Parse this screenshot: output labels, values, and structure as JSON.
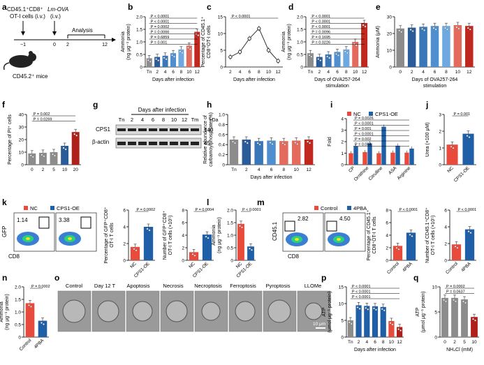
{
  "figure": {
    "panels": {
      "a": {
        "letter": "a",
        "cells_line1": "CD45.1⁺CD8⁺",
        "cells_line2": "OT-I cells (i.v.)",
        "lm": "Lm-OVA",
        "lm_route": "(i.v.)",
        "analysis": "Analysis",
        "mice": "CD45.2⁺ mice",
        "ticks": [
          "−1",
          "0",
          "2",
          "12"
        ]
      },
      "b": {
        "letter": "b"
      },
      "c": {
        "letter": "c"
      },
      "d": {
        "letter": "d"
      },
      "e": {
        "letter": "e"
      },
      "f": {
        "letter": "f"
      },
      "g": {
        "letter": "g",
        "title": "Days after infection",
        "lanes": [
          "Tn",
          "2",
          "4",
          "6",
          "8",
          "10",
          "12",
          "Tm"
        ],
        "kda": "kDa",
        "rows": [
          {
            "label": "CPS1",
            "kda": "140"
          },
          {
            "label": "β-actin",
            "kda": "45"
          }
        ]
      },
      "h": {
        "letter": "h"
      },
      "i": {
        "letter": "i"
      },
      "j": {
        "letter": "j"
      },
      "k": {
        "letter": "k",
        "legend": [
          "NC",
          "CPS1-OE"
        ],
        "gates": [
          "1.14",
          "3.38"
        ],
        "xaxis": "CD8",
        "yaxis": "GFP"
      },
      "l": {
        "letter": "l"
      },
      "m": {
        "letter": "m",
        "legend": [
          "Control",
          "4PBA"
        ],
        "gates": [
          "2.82",
          "4.50"
        ],
        "xaxis": "CD8",
        "yaxis": "CD45.1"
      },
      "n": {
        "letter": "n"
      },
      "o": {
        "letter": "o",
        "labels": [
          "Control",
          "Day 12 T",
          "Apoptosis",
          "Necrosis",
          "Necroptosis",
          "Ferroptosis",
          "Pyroptosis",
          "LLOMe"
        ],
        "sub": "eff",
        "scale": "10 μm"
      },
      "p": {
        "letter": "p"
      },
      "q": {
        "letter": "q"
      }
    }
  },
  "chart_data": [
    {
      "id": "b",
      "type": "bar",
      "categories": [
        "Tn",
        "2",
        "4",
        "6",
        "8",
        "10",
        "12"
      ],
      "values": [
        0.35,
        0.4,
        0.45,
        0.55,
        0.7,
        0.85,
        1.4
      ],
      "colors": [
        "#8c8c8c",
        "#2a5c9a",
        "#3a77b8",
        "#4f8fcf",
        "#6da8e0",
        "#e36a5d",
        "#c0281f"
      ],
      "ylabel": "Ammonia\n(ng μg⁻¹ protein)",
      "xlabel": "Days after infection",
      "ylim": [
        0,
        2
      ],
      "yticks": [
        "0",
        "0.5",
        "1.0",
        "1.5",
        "2.0"
      ],
      "pvalues": [
        "P < 0.0001",
        "P < 0.0001",
        "P = 0.0002",
        "P = 0.0066",
        "P = 0.6859",
        "P = 0.001"
      ]
    },
    {
      "id": "c",
      "type": "line",
      "categories": [
        "2",
        "4",
        "6",
        "8",
        "10",
        "12"
      ],
      "values": [
        3,
        4.5,
        8.5,
        11.5,
        5,
        1.8
      ],
      "ylabel": "Percentage of CD45.1⁺\nCD8⁺OT-I cells",
      "xlabel": "Days after infection",
      "ylim": [
        0,
        15
      ],
      "yticks": [
        "0",
        "5",
        "10",
        "15"
      ],
      "pvalues": [
        "P < 0.0001"
      ]
    },
    {
      "id": "d",
      "type": "bar",
      "categories": [
        "Tn",
        "2",
        "4",
        "6",
        "8",
        "10",
        "12"
      ],
      "values": [
        0.55,
        0.4,
        0.5,
        0.6,
        0.7,
        1.0,
        1.75
      ],
      "colors": [
        "#8c8c8c",
        "#2a5c9a",
        "#3a77b8",
        "#4f8fcf",
        "#6da8e0",
        "#e36a5d",
        "#c0281f"
      ],
      "ylabel": "Ammonia\n(ng μg⁻¹ protein)",
      "xlabel": "Days of OVA257-264\nstimulation",
      "ylim": [
        0,
        2
      ],
      "yticks": [
        "0",
        "0.5",
        "1.0",
        "1.5",
        "2.0"
      ],
      "pvalues": [
        "P < 0.0001",
        "P < 0.0001",
        "P < 0.0001",
        "P = 0.0096",
        "P = 0.1695",
        "P = 0.0226"
      ]
    },
    {
      "id": "e",
      "type": "bar",
      "categories": [
        "0",
        "2",
        "4",
        "6",
        "8",
        "10",
        "12"
      ],
      "values": [
        23,
        23.5,
        24,
        24.5,
        24.5,
        25,
        24.5
      ],
      "colors": [
        "#8c8c8c",
        "#2a5c9a",
        "#3a77b8",
        "#4f8fcf",
        "#6da8e0",
        "#e36a5d",
        "#c0281f"
      ],
      "ylabel": "Ammonia (μM)",
      "xlabel": "Days of OVA257-264\nstimulation",
      "ylim": [
        0,
        30
      ],
      "yticks": [
        "0",
        "10",
        "20",
        "30"
      ],
      "pvalues": []
    },
    {
      "id": "f",
      "type": "bar",
      "categories": [
        "0",
        "2",
        "5",
        "10",
        "20"
      ],
      "values": [
        9,
        9.5,
        10,
        15,
        26
      ],
      "colors": [
        "#8c8c8c",
        "#8c8c8c",
        "#8c8c8c",
        "#2a5c9a",
        "#b0201a"
      ],
      "ylabel": "Percentage of PI⁺ cells",
      "xlabel": "",
      "ylim": [
        0,
        40
      ],
      "yticks": [
        "0",
        "10",
        "20",
        "30",
        "40"
      ],
      "pvalues": [
        "P = 0.002",
        "P = 0.0269"
      ]
    },
    {
      "id": "h",
      "type": "bar",
      "categories": [
        "Tn",
        "2",
        "4",
        "6",
        "8",
        "10",
        "12"
      ],
      "values": [
        0.5,
        0.5,
        0.47,
        0.48,
        0.47,
        0.48,
        0.5
      ],
      "colors": [
        "#8c8c8c",
        "#2a5c9a",
        "#3a77b8",
        "#4f8fcf",
        "#e36a5d",
        "#e36a5d",
        "#c0281f"
      ],
      "ylabel": "Relative abundance of\ncarbamoylphosphate (%)",
      "xlabel": "Days after infection",
      "ylim": [
        0,
        1.0
      ],
      "yticks": [
        "0",
        "0.2",
        "0.4",
        "0.6",
        "0.8",
        "1.0"
      ],
      "pvalues": []
    },
    {
      "id": "i",
      "type": "bar",
      "categories": [
        "CP",
        "Ornithine",
        "Citrulline",
        "ASA",
        "Arginine"
      ],
      "series": [
        {
          "name": "NC",
          "values": [
            1.0,
            1.1,
            1.0,
            1.05,
            1.05
          ]
        },
        {
          "name": "CPS1-OE",
          "values": [
            1.6,
            1.85,
            3.3,
            1.65,
            1.4
          ]
        }
      ],
      "colors": [
        "#e84a3c",
        "#1f5fa8"
      ],
      "ylabel": "Fold",
      "xlabel": "",
      "ylim": [
        0,
        4
      ],
      "yticks": [
        "0",
        "1",
        "2",
        "3",
        "4"
      ],
      "pvalues": [
        "P = 0.0026",
        "P < 0.0001",
        "P = 0.001",
        "P < 0.0001",
        "P = 0.002",
        "P = 0.004"
      ]
    },
    {
      "id": "j",
      "type": "bar",
      "categories": [
        "NC",
        "CPS1-OE"
      ],
      "values": [
        1.2,
        1.85
      ],
      "colors": [
        "#e84a3c",
        "#1f5fa8"
      ],
      "ylabel": "Urea (×100 μM)",
      "xlabel": "",
      "ylim": [
        0,
        3
      ],
      "yticks": [
        "0",
        "1",
        "2",
        "3"
      ],
      "pvalues": [
        "P = 0.001"
      ]
    },
    {
      "id": "k1",
      "type": "bar",
      "categories": [
        "NC",
        "CPS1-OE"
      ],
      "values": [
        1.6,
        4.0
      ],
      "colors": [
        "#e84a3c",
        "#1f5fa8"
      ],
      "ylabel": "Percentage of GFP⁺CD8⁺\nOT-I T cells",
      "xlabel": "",
      "ylim": [
        0,
        6
      ],
      "yticks": [
        "0",
        "2",
        "4",
        "6"
      ],
      "pvalues": [
        "P = 0.0002"
      ]
    },
    {
      "id": "k2",
      "type": "bar",
      "categories": [
        "NC",
        "CPS1-OE"
      ],
      "values": [
        1.3,
        4.1
      ],
      "colors": [
        "#e84a3c",
        "#1f5fa8"
      ],
      "ylabel": "Number of GFP⁺CD8⁺\nOT-I T cells (×10⁵)",
      "xlabel": "",
      "ylim": [
        0,
        8
      ],
      "yticks": [
        "0",
        "2",
        "4",
        "6",
        "8"
      ],
      "pvalues": [
        "P = 0.0004"
      ]
    },
    {
      "id": "l",
      "type": "bar",
      "categories": [
        "NC",
        "CPS1-OE"
      ],
      "values": [
        1.45,
        0.55
      ],
      "colors": [
        "#e84a3c",
        "#1f5fa8"
      ],
      "ylabel": "Ammonia\n(ng μg⁻¹ protein)",
      "xlabel": "",
      "ylim": [
        0,
        2
      ],
      "yticks": [
        "0",
        "0.5",
        "1.0",
        "1.5",
        "2.0"
      ],
      "pvalues": [
        "P < 0.0001"
      ]
    },
    {
      "id": "m1",
      "type": "bar",
      "categories": [
        "Control",
        "4PBA"
      ],
      "values": [
        2.3,
        4.4
      ],
      "colors": [
        "#e84a3c",
        "#1f5fa8"
      ],
      "ylabel": "Percentage of CD45.1⁺\nCD8⁺OT-I T cells",
      "xlabel": "",
      "ylim": [
        0,
        8
      ],
      "yticks": [
        "0",
        "2",
        "4",
        "6",
        "8"
      ],
      "pvalues": [
        "P < 0.0001"
      ]
    },
    {
      "id": "m2",
      "type": "bar",
      "categories": [
        "Control",
        "4PBA"
      ],
      "values": [
        1.9,
        3.7
      ],
      "colors": [
        "#e84a3c",
        "#1f5fa8"
      ],
      "ylabel": "Number of CD45.1⁺CD8⁺\nOT-I T cells (×10⁵)",
      "xlabel": "",
      "ylim": [
        0,
        6
      ],
      "yticks": [
        "0",
        "2",
        "4",
        "6"
      ],
      "pvalues": [
        "P < 0.0001"
      ]
    },
    {
      "id": "n",
      "type": "bar",
      "categories": [
        "Control",
        "4PBA"
      ],
      "values": [
        1.35,
        0.65
      ],
      "colors": [
        "#e84a3c",
        "#1f5fa8"
      ],
      "ylabel": "Ammonia\n(ng μg⁻¹ protein)",
      "xlabel": "",
      "ylim": [
        0,
        2
      ],
      "yticks": [
        "0",
        "0.5",
        "1.0",
        "1.5",
        "2.0"
      ],
      "pvalues": [
        "P = 0.0002"
      ]
    },
    {
      "id": "p",
      "type": "bar",
      "categories": [
        "Tn",
        "2",
        "4",
        "6",
        "8",
        "10",
        "12"
      ],
      "values": [
        5,
        9.5,
        9.3,
        9.2,
        9,
        4.8,
        3
      ],
      "colors": [
        "#8c8c8c",
        "#1f5fa8",
        "#1f5fa8",
        "#1f5fa8",
        "#1f5fa8",
        "#e84a3c",
        "#b0201a"
      ],
      "ylabel": "ATP\n(μmol μg⁻¹ protein)",
      "xlabel": "Days after infection",
      "ylim": [
        0,
        15
      ],
      "yticks": [
        "0",
        "5",
        "10",
        "15"
      ],
      "pvalues": [
        "P < 0.0001",
        "P < 0.0001",
        "P < 0.0001"
      ]
    },
    {
      "id": "q",
      "type": "bar",
      "categories": [
        "0",
        "2",
        "5",
        "10"
      ],
      "values": [
        7.8,
        7.8,
        7.5,
        4.0
      ],
      "colors": [
        "#8c8c8c",
        "#8c8c8c",
        "#8c8c8c",
        "#b0201a"
      ],
      "ylabel": "ATP\n(μmol μg⁻¹ protein)",
      "xlabel": "NH₄Cl (mM)",
      "ylim": [
        0,
        10
      ],
      "yticks": [
        "0",
        "5",
        "10"
      ],
      "pvalues": [
        "P = 0.0002",
        "P = 0.0637"
      ]
    }
  ]
}
